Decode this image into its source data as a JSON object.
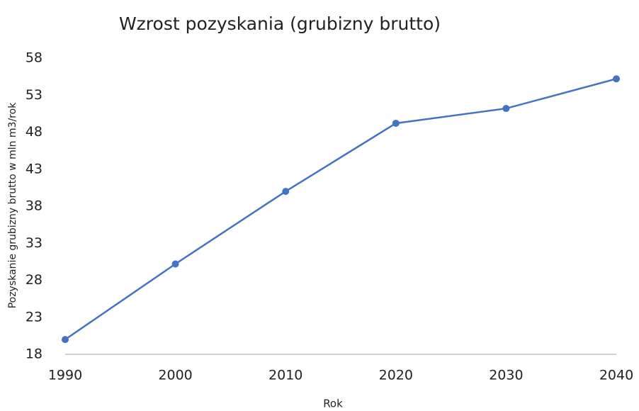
{
  "chart_data": {
    "type": "line",
    "title": "Wzrost pozyskania (grubizny brutto)",
    "x_label": "Rok",
    "y_label": "Pozyskanie grubizny brutto  w mln m3/rok",
    "categories": [
      "1990",
      "2000",
      "2010",
      "2020",
      "2030",
      "2040"
    ],
    "series": [
      {
        "name": "Pozyskanie",
        "color": "#4472c4",
        "values": [
          20,
          30.2,
          40,
          49.2,
          51.2,
          55.2
        ]
      }
    ],
    "ylim": [
      18,
      58
    ],
    "yticks": [
      18,
      23,
      28,
      33,
      38,
      43,
      48,
      53,
      58
    ],
    "grid": false
  }
}
